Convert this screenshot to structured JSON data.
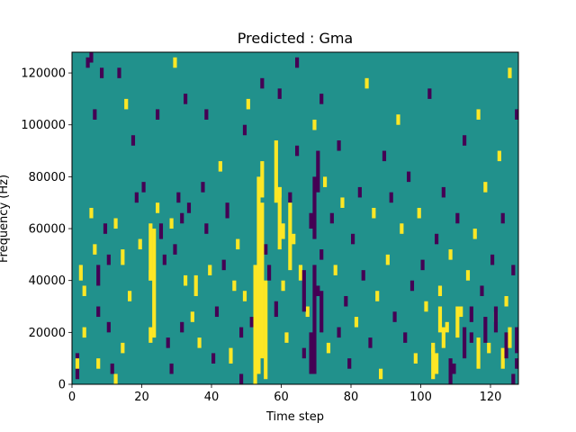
{
  "chart_data": {
    "type": "heatmap",
    "title": "Predicted : Gma",
    "xlabel": "Time step",
    "ylabel": "Frequency (Hz)",
    "xlim": [
      0,
      128
    ],
    "ylim": [
      0,
      128000
    ],
    "x_ticks": [
      {
        "v": 0,
        "label": "0"
      },
      {
        "v": 20,
        "label": "20"
      },
      {
        "v": 40,
        "label": "40"
      },
      {
        "v": 60,
        "label": "60"
      },
      {
        "v": 80,
        "label": "80"
      },
      {
        "v": 100,
        "label": "100"
      },
      {
        "v": 120,
        "label": "120"
      }
    ],
    "y_ticks": [
      {
        "v": 0,
        "label": "0"
      },
      {
        "v": 20000,
        "label": "20000"
      },
      {
        "v": 40000,
        "label": "40000"
      },
      {
        "v": 60000,
        "label": "60000"
      },
      {
        "v": 80000,
        "label": "80000"
      },
      {
        "v": 100000,
        "label": "100000"
      },
      {
        "v": 120000,
        "label": "120000"
      }
    ],
    "grid": false,
    "colormap": "viridis",
    "background_value": 0,
    "value_colors": {
      "-1": "#440154",
      "0": "#21918c",
      "1": "#fde725"
    },
    "cells_note_value_low": -1,
    "cells_note_value_high": 1,
    "cells": [
      [
        1,
        2000,
        12000,
        -1
      ],
      [
        1,
        6000,
        10000,
        1
      ],
      [
        2,
        40000,
        46000,
        1
      ],
      [
        3,
        18000,
        22000,
        1
      ],
      [
        3,
        34000,
        38000,
        1
      ],
      [
        4,
        122000,
        126000,
        -1
      ],
      [
        5,
        64000,
        68000,
        1
      ],
      [
        5,
        124000,
        128000,
        -1
      ],
      [
        6,
        50000,
        54000,
        1
      ],
      [
        6,
        102000,
        106000,
        -1
      ],
      [
        7,
        6000,
        10000,
        1
      ],
      [
        7,
        26000,
        30000,
        -1
      ],
      [
        7,
        38000,
        46000,
        -1
      ],
      [
        8,
        118000,
        122000,
        -1
      ],
      [
        9,
        58000,
        62000,
        -1
      ],
      [
        10,
        20000,
        24000,
        -1
      ],
      [
        10,
        46000,
        50000,
        -1
      ],
      [
        11,
        4000,
        8000,
        -1
      ],
      [
        12,
        0,
        4000,
        1
      ],
      [
        12,
        60000,
        64000,
        1
      ],
      [
        13,
        118000,
        122000,
        -1
      ],
      [
        14,
        12000,
        16000,
        1
      ],
      [
        14,
        46000,
        52000,
        1
      ],
      [
        15,
        106000,
        110000,
        1
      ],
      [
        16,
        32000,
        36000,
        1
      ],
      [
        17,
        92000,
        96000,
        -1
      ],
      [
        18,
        70000,
        74000,
        -1
      ],
      [
        19,
        52000,
        56000,
        1
      ],
      [
        20,
        74000,
        78000,
        -1
      ],
      [
        22,
        16000,
        22000,
        1
      ],
      [
        22,
        40000,
        44000,
        1
      ],
      [
        24,
        66000,
        70000,
        1
      ],
      [
        24,
        102000,
        106000,
        -1
      ],
      [
        25,
        56000,
        62000,
        -1
      ],
      [
        26,
        46000,
        50000,
        -1
      ],
      [
        27,
        14000,
        18000,
        -1
      ],
      [
        28,
        60000,
        64000,
        1
      ],
      [
        28,
        4000,
        8000,
        -1
      ],
      [
        29,
        50000,
        54000,
        -1
      ],
      [
        29,
        122000,
        126000,
        1
      ],
      [
        30,
        70000,
        74000,
        -1
      ],
      [
        31,
        20000,
        24000,
        -1
      ],
      [
        31,
        62000,
        66000,
        -1
      ],
      [
        32,
        38000,
        42000,
        1
      ],
      [
        32,
        108000,
        112000,
        -1
      ],
      [
        33,
        66000,
        70000,
        -1
      ],
      [
        34,
        24000,
        28000,
        1
      ],
      [
        35,
        34000,
        42000,
        1
      ],
      [
        36,
        14000,
        18000,
        1
      ],
      [
        37,
        74000,
        78000,
        -1
      ],
      [
        38,
        58000,
        62000,
        -1
      ],
      [
        38,
        102000,
        106000,
        -1
      ],
      [
        39,
        42000,
        46000,
        1
      ],
      [
        40,
        8000,
        12000,
        -1
      ],
      [
        41,
        26000,
        30000,
        -1
      ],
      [
        42,
        82000,
        86000,
        1
      ],
      [
        43,
        44000,
        48000,
        -1
      ],
      [
        44,
        64000,
        70000,
        -1
      ],
      [
        45,
        8000,
        14000,
        1
      ],
      [
        46,
        36000,
        40000,
        1
      ],
      [
        47,
        52000,
        56000,
        1
      ],
      [
        48,
        0,
        4000,
        -1
      ],
      [
        48,
        18000,
        22000,
        -1
      ],
      [
        49,
        32000,
        36000,
        1
      ],
      [
        49,
        96000,
        100000,
        -1
      ],
      [
        50,
        106000,
        110000,
        1
      ],
      [
        51,
        22000,
        26000,
        -1
      ],
      [
        53,
        28000,
        32000,
        1
      ],
      [
        54,
        114000,
        118000,
        -1
      ],
      [
        55,
        50000,
        54000,
        -1
      ],
      [
        56,
        40000,
        46000,
        -1
      ],
      [
        58,
        26000,
        32000,
        -1
      ],
      [
        59,
        72000,
        76000,
        1
      ],
      [
        59,
        110000,
        114000,
        -1
      ],
      [
        60,
        36000,
        40000,
        1
      ],
      [
        61,
        16000,
        20000,
        1
      ],
      [
        62,
        70000,
        74000,
        -1
      ],
      [
        63,
        54000,
        58000,
        1
      ],
      [
        64,
        88000,
        92000,
        -1
      ],
      [
        64,
        122000,
        126000,
        -1
      ],
      [
        65,
        40000,
        46000,
        1
      ],
      [
        66,
        10000,
        14000,
        -1
      ],
      [
        67,
        26000,
        30000,
        1
      ],
      [
        68,
        60000,
        66000,
        -1
      ],
      [
        69,
        98000,
        102000,
        1
      ],
      [
        70,
        34000,
        38000,
        -1
      ],
      [
        71,
        48000,
        52000,
        -1
      ],
      [
        71,
        108000,
        112000,
        -1
      ],
      [
        72,
        76000,
        80000,
        1
      ],
      [
        73,
        12000,
        16000,
        1
      ],
      [
        74,
        62000,
        66000,
        -1
      ],
      [
        75,
        42000,
        46000,
        1
      ],
      [
        76,
        18000,
        22000,
        -1
      ],
      [
        76,
        90000,
        94000,
        -1
      ],
      [
        77,
        68000,
        72000,
        1
      ],
      [
        78,
        30000,
        34000,
        -1
      ],
      [
        79,
        6000,
        10000,
        -1
      ],
      [
        80,
        54000,
        58000,
        -1
      ],
      [
        81,
        22000,
        26000,
        1
      ],
      [
        82,
        72000,
        76000,
        -1
      ],
      [
        83,
        40000,
        44000,
        -1
      ],
      [
        84,
        114000,
        118000,
        1
      ],
      [
        85,
        14000,
        18000,
        -1
      ],
      [
        86,
        64000,
        68000,
        1
      ],
      [
        87,
        32000,
        36000,
        1
      ],
      [
        88,
        2000,
        6000,
        1
      ],
      [
        89,
        86000,
        90000,
        -1
      ],
      [
        90,
        46000,
        50000,
        1
      ],
      [
        91,
        70000,
        74000,
        -1
      ],
      [
        92,
        24000,
        28000,
        -1
      ],
      [
        93,
        100000,
        104000,
        1
      ],
      [
        94,
        58000,
        62000,
        1
      ],
      [
        95,
        16000,
        20000,
        -1
      ],
      [
        96,
        78000,
        82000,
        -1
      ],
      [
        97,
        36000,
        40000,
        -1
      ],
      [
        98,
        8000,
        12000,
        1
      ],
      [
        99,
        64000,
        68000,
        1
      ],
      [
        100,
        44000,
        48000,
        -1
      ],
      [
        101,
        28000,
        32000,
        1
      ],
      [
        102,
        110000,
        114000,
        -1
      ],
      [
        103,
        12000,
        16000,
        1
      ],
      [
        104,
        54000,
        58000,
        -1
      ],
      [
        105,
        34000,
        38000,
        1
      ],
      [
        106,
        72000,
        76000,
        -1
      ],
      [
        107,
        20000,
        24000,
        1
      ],
      [
        108,
        48000,
        52000,
        1
      ],
      [
        109,
        4000,
        8000,
        -1
      ],
      [
        110,
        62000,
        66000,
        -1
      ],
      [
        111,
        26000,
        30000,
        1
      ],
      [
        112,
        92000,
        96000,
        -1
      ],
      [
        113,
        40000,
        44000,
        1
      ],
      [
        114,
        16000,
        20000,
        -1
      ],
      [
        115,
        56000,
        60000,
        1
      ],
      [
        116,
        102000,
        106000,
        1
      ],
      [
        117,
        34000,
        38000,
        -1
      ],
      [
        118,
        74000,
        78000,
        1
      ],
      [
        119,
        12000,
        16000,
        1
      ],
      [
        120,
        46000,
        50000,
        -1
      ],
      [
        121,
        24000,
        28000,
        1
      ],
      [
        122,
        86000,
        90000,
        1
      ],
      [
        123,
        62000,
        66000,
        -1
      ],
      [
        124,
        30000,
        34000,
        1
      ],
      [
        125,
        118000,
        122000,
        1
      ],
      [
        126,
        42000,
        46000,
        -1
      ],
      [
        127,
        6000,
        10000,
        -1
      ],
      [
        127,
        102000,
        106000,
        -1
      ],
      [
        23,
        18000,
        60000,
        1
      ],
      [
        22,
        40000,
        62000,
        1
      ],
      [
        52,
        0,
        46000,
        1
      ],
      [
        53,
        4000,
        80000,
        1
      ],
      [
        54,
        10000,
        70000,
        1
      ],
      [
        55,
        2000,
        40000,
        1
      ],
      [
        54,
        72000,
        86000,
        1
      ],
      [
        58,
        70000,
        94000,
        1
      ],
      [
        59,
        52000,
        76000,
        1
      ],
      [
        60,
        56000,
        62000,
        1
      ],
      [
        62,
        44000,
        70000,
        1
      ],
      [
        68,
        4000,
        20000,
        -1
      ],
      [
        69,
        4000,
        46000,
        -1
      ],
      [
        69,
        56000,
        80000,
        -1
      ],
      [
        70,
        74000,
        90000,
        -1
      ],
      [
        66,
        28000,
        44000,
        -1
      ],
      [
        71,
        20000,
        36000,
        -1
      ],
      [
        103,
        2000,
        14000,
        1
      ],
      [
        104,
        4000,
        12000,
        1
      ],
      [
        105,
        20000,
        30000,
        1
      ],
      [
        106,
        14000,
        22000,
        1
      ],
      [
        108,
        0,
        10000,
        -1
      ],
      [
        110,
        18000,
        30000,
        1
      ],
      [
        112,
        10000,
        22000,
        -1
      ],
      [
        114,
        24000,
        30000,
        -1
      ],
      [
        116,
        6000,
        18000,
        1
      ],
      [
        118,
        16000,
        26000,
        -1
      ],
      [
        121,
        20000,
        30000,
        -1
      ],
      [
        123,
        6000,
        14000,
        1
      ],
      [
        124,
        10000,
        20000,
        -1
      ],
      [
        125,
        14000,
        22000,
        1
      ],
      [
        126,
        0,
        4000,
        -1
      ],
      [
        127,
        12000,
        22000,
        -1
      ]
    ]
  }
}
